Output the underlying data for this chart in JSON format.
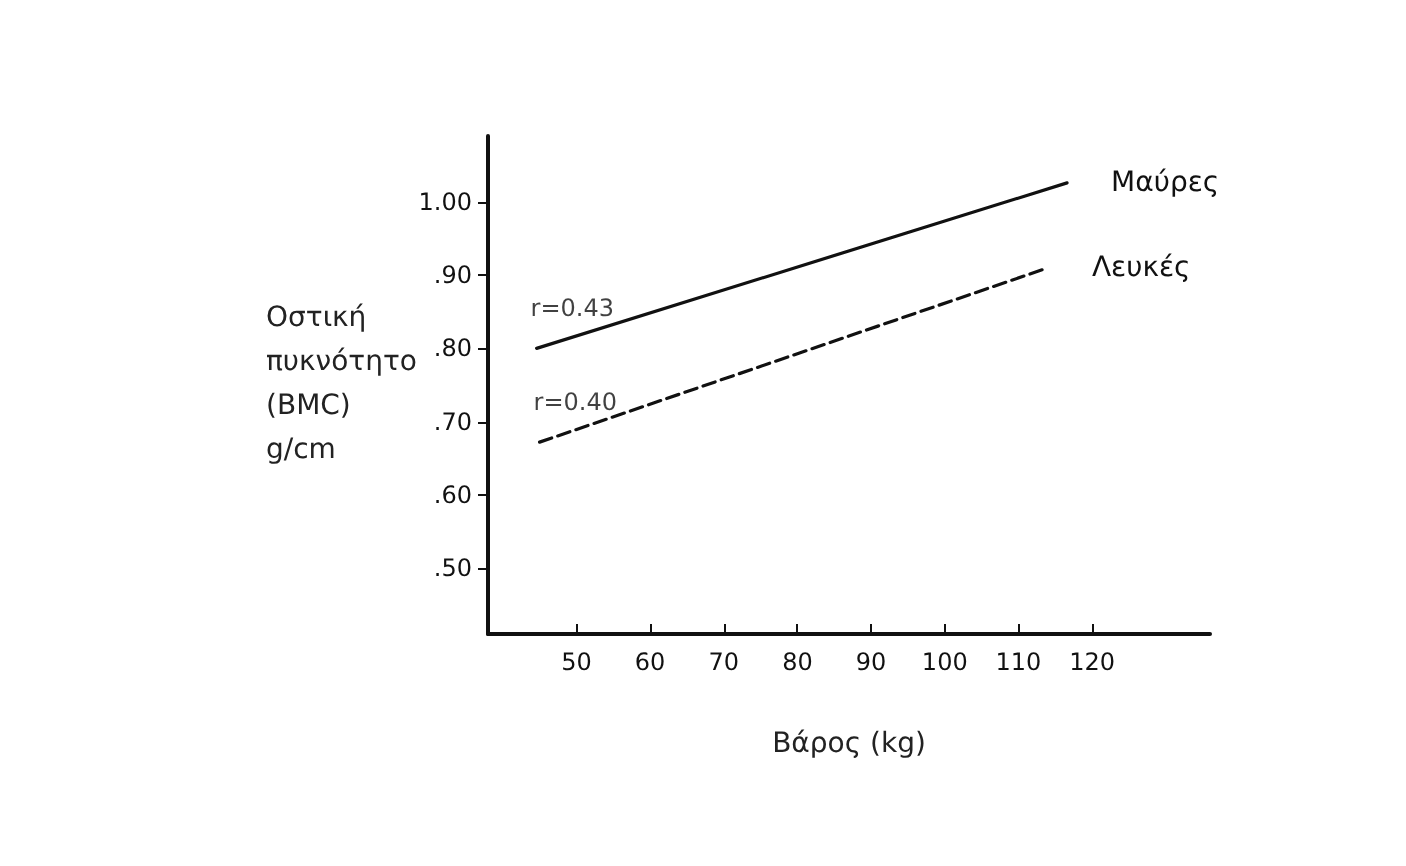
{
  "chart_data": {
    "type": "line",
    "xlabel": "Βάρος (kg)",
    "ylabel": "Οστική\nπυκνότητο\n(BMC)\ng/cm",
    "xlim": [
      38,
      136
    ],
    "xticks": [
      50,
      60,
      70,
      80,
      90,
      100,
      110,
      120
    ],
    "ylim": [
      0.41,
      1.09
    ],
    "yticks": [
      {
        "value": 0.5,
        "label": ".50"
      },
      {
        "value": 0.6,
        "label": ".60"
      },
      {
        "value": 0.7,
        "label": ".70"
      },
      {
        "value": 0.8,
        "label": ".80"
      },
      {
        "value": 0.9,
        "label": ".90"
      },
      {
        "value": 1.0,
        "label": "1.00"
      }
    ],
    "series": [
      {
        "name": "Μαύρες",
        "color": "#111111",
        "line_style": "solid",
        "x": [
          44.6,
          116.6
        ],
        "values": [
          0.8,
          1.026
        ]
      },
      {
        "name": "Λευκές",
        "color": "#111111",
        "line_style": "dashed",
        "x": [
          45,
          114
        ],
        "values": [
          0.672,
          0.91
        ]
      }
    ],
    "annotations": [
      "r=0.43",
      "r=0.40"
    ],
    "grid": false,
    "legend": false,
    "marker": "none"
  }
}
